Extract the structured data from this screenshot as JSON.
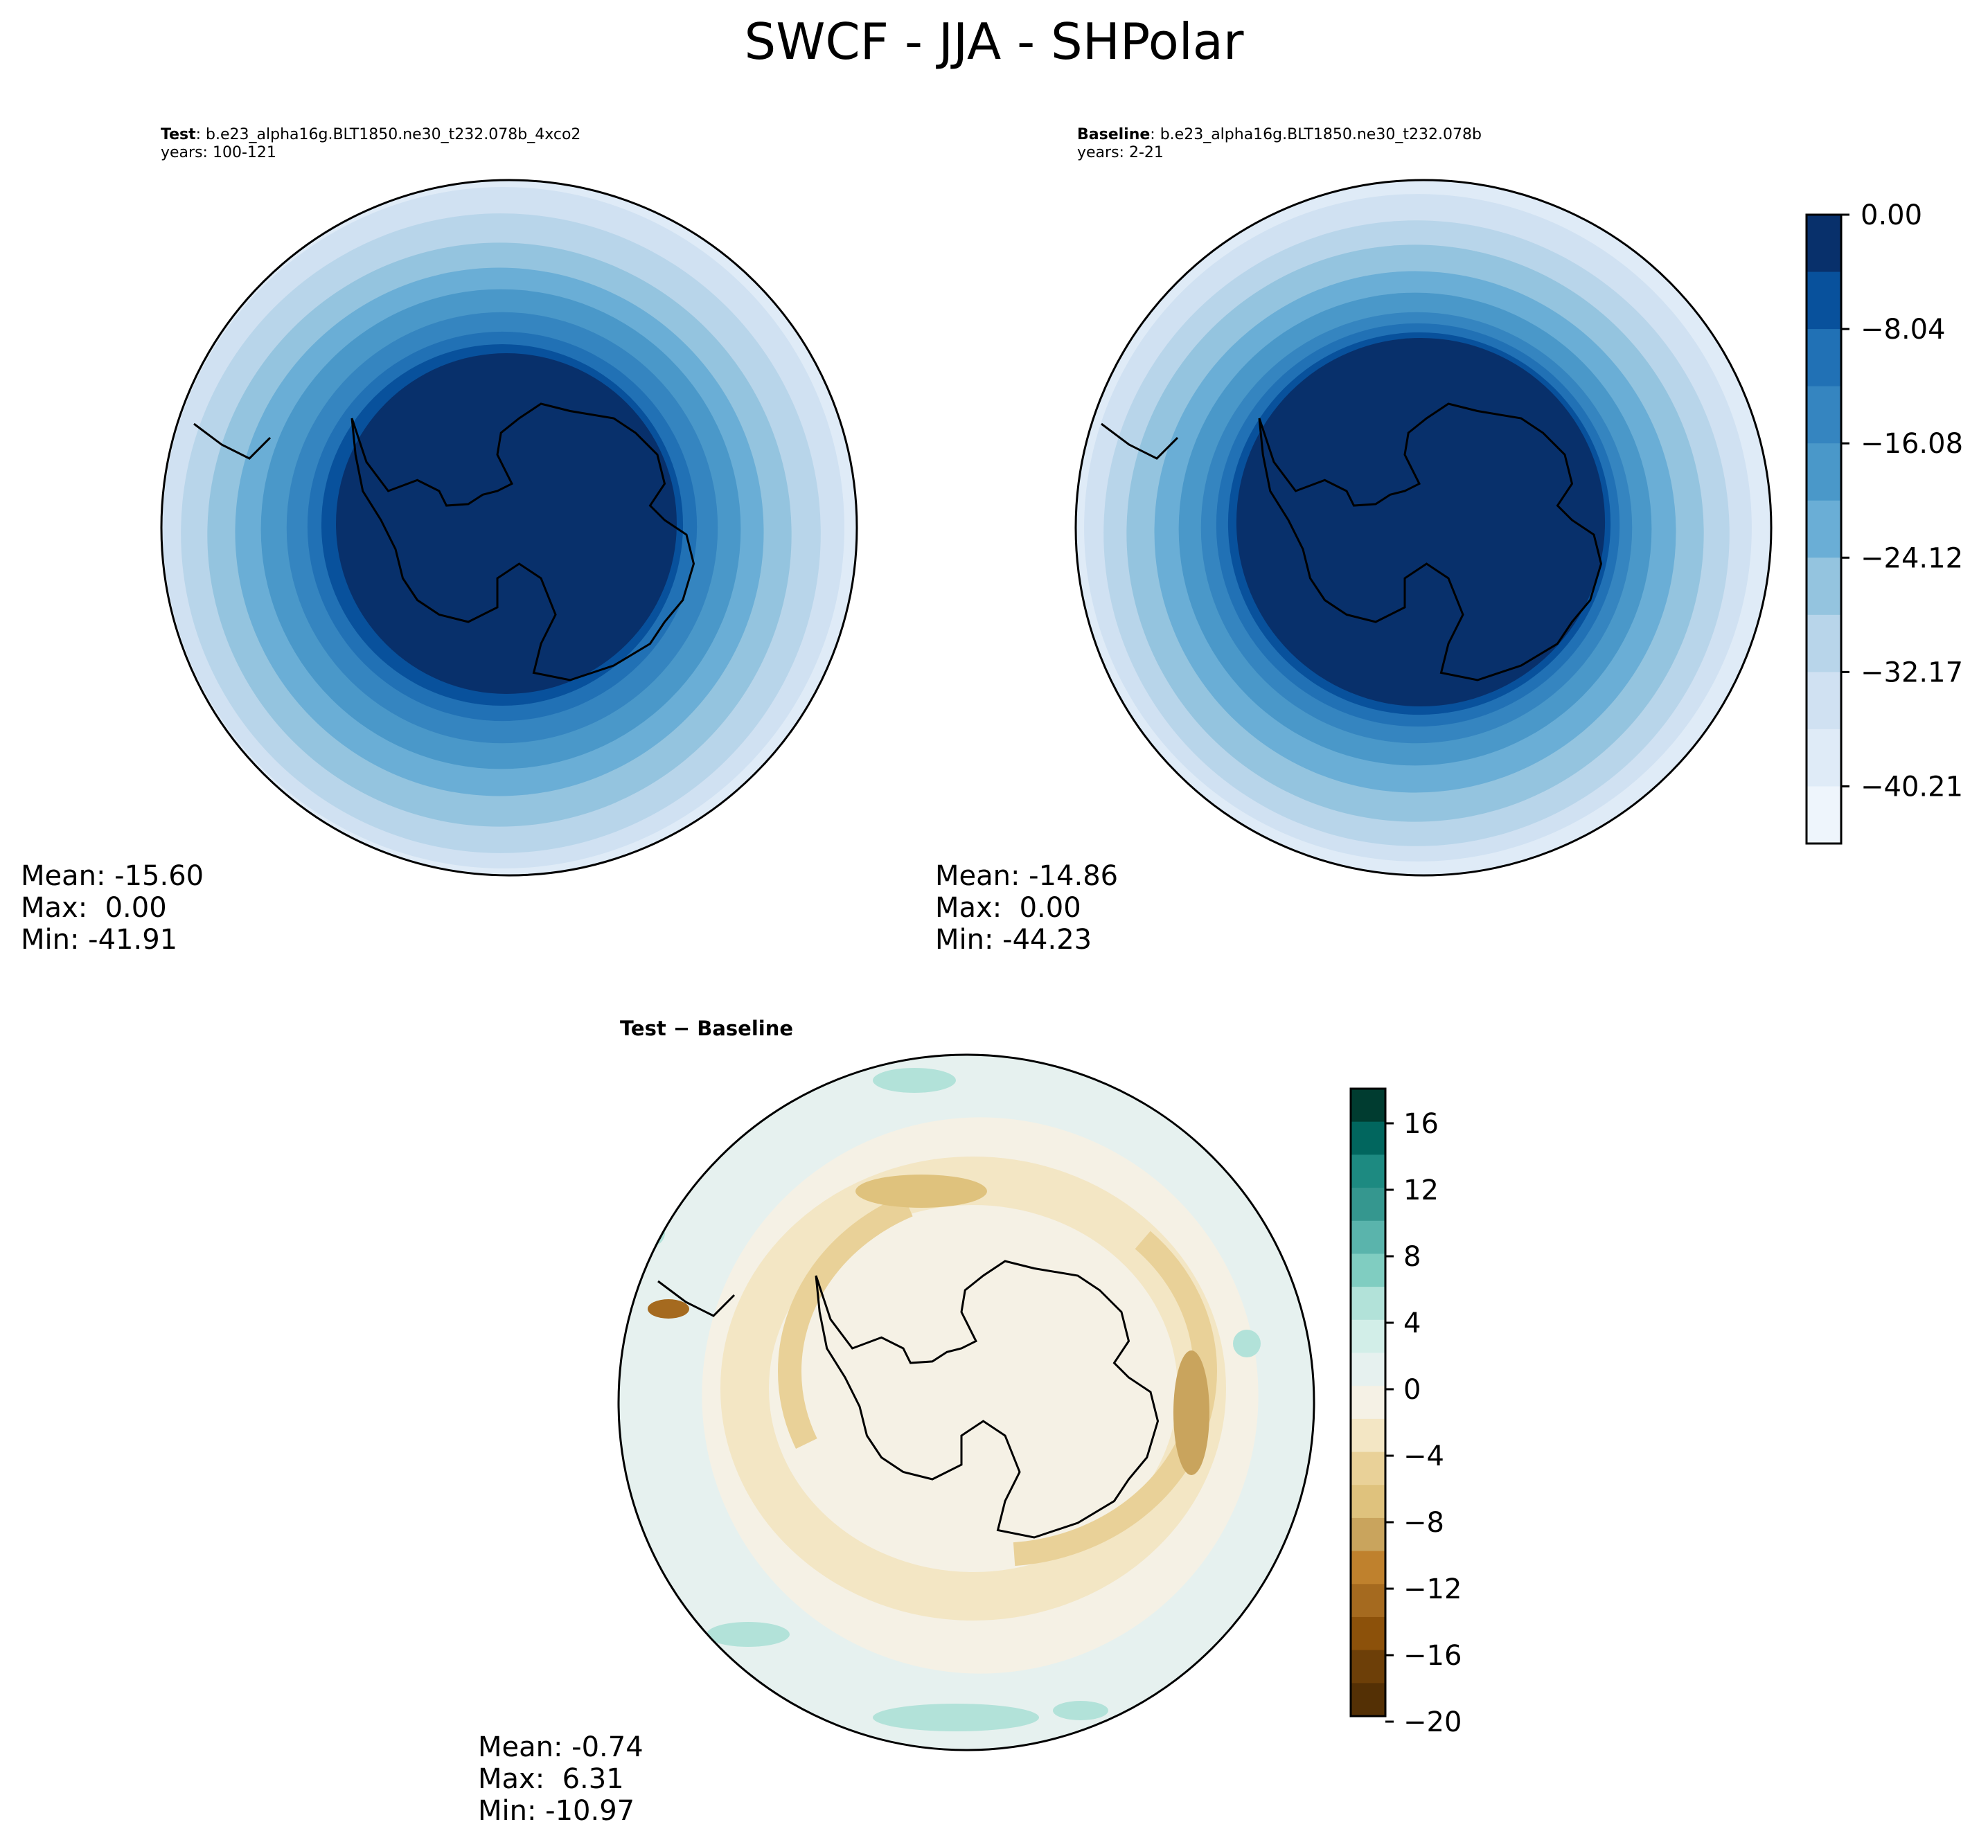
{
  "title": "SWCF - JJA - SHPolar",
  "panels": [
    {
      "id": "test",
      "label": "Test",
      "case": "b.e23_alpha16g.BLT1850.ne30_t232.078b_4xco2",
      "years": "years: 100-121",
      "stats": {
        "mean": "Mean: -15.60",
        "max": "Max:  0.00",
        "min": "Min: -41.91"
      }
    },
    {
      "id": "baseline",
      "label": "Baseline",
      "case": "b.e23_alpha16g.BLT1850.ne30_t232.078b",
      "years": "years: 2-21",
      "stats": {
        "mean": "Mean: -14.86",
        "max": "Max:  0.00",
        "min": "Min: -44.23"
      }
    },
    {
      "id": "diff",
      "label": "Test − Baseline",
      "stats": {
        "mean": "Mean: -0.74",
        "max": "Max:  6.31",
        "min": "Min: -10.97"
      }
    }
  ],
  "colorbars": {
    "main": {
      "ticks": [
        "0.00",
        "−8.04",
        "−16.08",
        "−24.12",
        "−32.17",
        "−40.21"
      ],
      "levels": 11,
      "colors": [
        "#08306b",
        "#08519c",
        "#2171b5",
        "#3585c0",
        "#4a98c9",
        "#6aaed6",
        "#94c4df",
        "#b8d5ea",
        "#d0e1f2",
        "#dfebf7",
        "#eef5fc"
      ]
    },
    "diff": {
      "ticks": [
        "16",
        "12",
        "8",
        "4",
        "0",
        "−4",
        "−8",
        "−12",
        "−16",
        "−20"
      ],
      "colors": [
        "#003c30",
        "#01665e",
        "#1d8a81",
        "#35978f",
        "#5ab4ac",
        "#80cdc1",
        "#b2e2d9",
        "#d2eee8",
        "#e6f1ef",
        "#f5f1e5",
        "#f3e6c4",
        "#e9d198",
        "#dfc27d",
        "#c9a45d",
        "#bf812d",
        "#a56a1f",
        "#8c510a",
        "#6d3f08",
        "#543005"
      ]
    }
  }
}
